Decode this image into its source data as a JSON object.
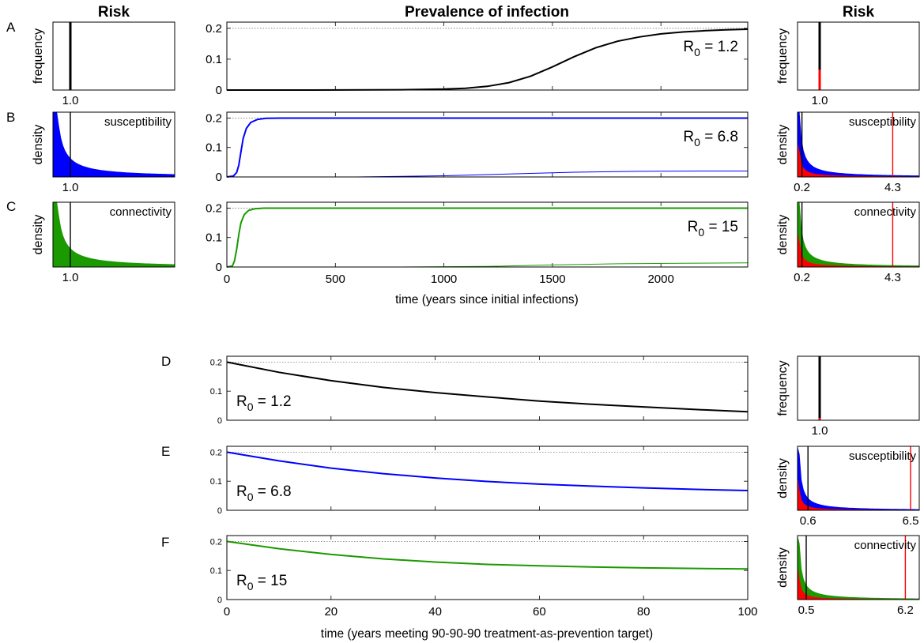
{
  "headers": {
    "risk_left": "Risk",
    "prevalence": "Prevalence of infection",
    "risk_right": "Risk"
  },
  "colors": {
    "black": "#000000",
    "blue": "#0000ff",
    "green": "#1a9a00",
    "red": "#ff0000"
  },
  "chart_data": [
    {
      "id": "A-left",
      "panel": "A",
      "type": "bar",
      "ylabel": "frequency",
      "xticks": [
        "1.0"
      ],
      "marker_lines": [
        1.0
      ],
      "distribution": "point mass at 1.0"
    },
    {
      "id": "A-mid",
      "panel": "A",
      "type": "line",
      "annotation": "R0 = 1.2",
      "r0_base": "R",
      "r0_sub": "0",
      "r0_rest": " = 1.2",
      "yticks": [
        "0",
        "0.1",
        "0.2"
      ],
      "ylim": [
        0,
        0.22
      ],
      "reference_line": 0.2,
      "series": [
        {
          "color": "black",
          "x": [
            0,
            400,
            800,
            1000,
            1100,
            1200,
            1300,
            1400,
            1500,
            1600,
            1700,
            1800,
            1900,
            2000,
            2100,
            2200,
            2300,
            2400
          ],
          "y": [
            0,
            0,
            0.001,
            0.003,
            0.006,
            0.012,
            0.024,
            0.045,
            0.075,
            0.108,
            0.137,
            0.158,
            0.172,
            0.182,
            0.188,
            0.192,
            0.195,
            0.197
          ]
        }
      ]
    },
    {
      "id": "A-right",
      "panel": "A",
      "type": "bar",
      "ylabel": "frequency",
      "xticks": [
        "1.0"
      ],
      "marker_lines": [
        1.0
      ]
    },
    {
      "id": "B-left",
      "panel": "B",
      "type": "bar",
      "ylabel": "density",
      "corner_label": "susceptibility",
      "xticks": [
        "1.0"
      ],
      "marker_lines": [
        1.0
      ],
      "distribution": "decaying, blue"
    },
    {
      "id": "B-mid",
      "panel": "B",
      "type": "line",
      "annotation": "R0 = 6.8",
      "r0_base": "R",
      "r0_sub": "0",
      "r0_rest": " = 6.8",
      "yticks": [
        "0",
        "0.1",
        "0.2"
      ],
      "ylim": [
        0,
        0.22
      ],
      "reference_line": 0.2,
      "series": [
        {
          "color": "blue",
          "x": [
            0,
            30,
            45,
            55,
            65,
            75,
            90,
            110,
            140,
            180,
            250,
            2400
          ],
          "y": [
            0,
            0.003,
            0.015,
            0.04,
            0.085,
            0.13,
            0.165,
            0.185,
            0.195,
            0.199,
            0.2,
            0.2
          ]
        },
        {
          "color": "blue",
          "thin": true,
          "x": [
            0,
            600,
            1000,
            1300,
            1600,
            1900,
            2200,
            2400
          ],
          "y": [
            0,
            0,
            0.004,
            0.01,
            0.016,
            0.019,
            0.02,
            0.02
          ]
        }
      ]
    },
    {
      "id": "B-right",
      "panel": "B",
      "type": "bar",
      "ylabel": "density",
      "corner_label": "susceptibility",
      "xticks": [
        "0.2",
        "4.3"
      ],
      "marker_lines": [
        0.2,
        4.3
      ]
    },
    {
      "id": "C-left",
      "panel": "C",
      "type": "bar",
      "ylabel": "density",
      "corner_label": "connectivity",
      "xticks": [
        "1.0"
      ],
      "marker_lines": [
        1.0
      ],
      "distribution": "decaying, green"
    },
    {
      "id": "C-mid",
      "panel": "C",
      "type": "line",
      "annotation": "R0 = 15",
      "r0_base": "R",
      "r0_sub": "0",
      "r0_rest": " = 15",
      "xlabel": "time (years since initial infections)",
      "xticks": [
        "0",
        "500",
        "1000",
        "1500",
        "2000"
      ],
      "xlim": [
        0,
        2400
      ],
      "yticks": [
        "0",
        "0.1",
        "0.2"
      ],
      "ylim": [
        0,
        0.22
      ],
      "reference_line": 0.2,
      "series": [
        {
          "color": "green",
          "x": [
            0,
            25,
            35,
            45,
            55,
            65,
            80,
            100,
            130,
            170,
            230,
            2400
          ],
          "y": [
            0,
            0.003,
            0.02,
            0.06,
            0.11,
            0.15,
            0.178,
            0.192,
            0.198,
            0.2,
            0.2,
            0.2
          ]
        },
        {
          "color": "green",
          "thin": true,
          "x": [
            0,
            800,
            1200,
            1500,
            1800,
            2100,
            2400
          ],
          "y": [
            0,
            0,
            0.002,
            0.007,
            0.011,
            0.013,
            0.014
          ]
        }
      ]
    },
    {
      "id": "C-right",
      "panel": "C",
      "type": "bar",
      "ylabel": "density",
      "corner_label": "connectivity",
      "xticks": [
        "0.2",
        "4.3"
      ],
      "marker_lines": [
        0.2,
        4.3
      ]
    },
    {
      "id": "D-mid",
      "panel": "D",
      "type": "line",
      "annotation": "R0 = 1.2",
      "r0_base": "R",
      "r0_sub": "0",
      "r0_rest": " = 1.2",
      "yticks": [
        "0",
        "0.1",
        "0.2"
      ],
      "ylim": [
        0,
        0.22
      ],
      "reference_line": 0.2,
      "series": [
        {
          "color": "black",
          "x": [
            0,
            10,
            20,
            30,
            40,
            50,
            60,
            70,
            80,
            90,
            100
          ],
          "y": [
            0.2,
            0.165,
            0.136,
            0.113,
            0.095,
            0.08,
            0.066,
            0.055,
            0.046,
            0.037,
            0.029
          ]
        }
      ]
    },
    {
      "id": "D-right",
      "panel": "D",
      "type": "bar",
      "ylabel": "frequency",
      "xticks": [
        "1.0"
      ],
      "marker_lines": [
        1.0
      ]
    },
    {
      "id": "E-mid",
      "panel": "E",
      "type": "line",
      "annotation": "R0 = 6.8",
      "r0_base": "R",
      "r0_sub": "0",
      "r0_rest": " = 6.8",
      "yticks": [
        "0",
        "0.1",
        "0.2"
      ],
      "ylim": [
        0,
        0.22
      ],
      "reference_line": 0.2,
      "series": [
        {
          "color": "blue",
          "x": [
            0,
            10,
            20,
            30,
            40,
            50,
            60,
            70,
            80,
            90,
            100
          ],
          "y": [
            0.2,
            0.17,
            0.145,
            0.126,
            0.111,
            0.099,
            0.09,
            0.083,
            0.077,
            0.072,
            0.068
          ]
        }
      ]
    },
    {
      "id": "E-right",
      "panel": "E",
      "type": "bar",
      "ylabel": "density",
      "corner_label": "susceptibility",
      "xticks": [
        "0.6",
        "6.5"
      ],
      "marker_lines": [
        0.6,
        6.5
      ]
    },
    {
      "id": "F-mid",
      "panel": "F",
      "type": "line",
      "annotation": "R0 = 15",
      "r0_base": "R",
      "r0_sub": "0",
      "r0_rest": " = 15",
      "xlabel": "time (years meeting 90-90-90 treatment-as-prevention target)",
      "xticks": [
        "0",
        "20",
        "40",
        "60",
        "80",
        "100"
      ],
      "xlim": [
        0,
        100
      ],
      "yticks": [
        "0",
        "0.1",
        "0.2"
      ],
      "ylim": [
        0,
        0.22
      ],
      "reference_line": 0.2,
      "series": [
        {
          "color": "green",
          "x": [
            0,
            10,
            20,
            30,
            40,
            50,
            60,
            70,
            80,
            90,
            100
          ],
          "y": [
            0.2,
            0.175,
            0.155,
            0.14,
            0.129,
            0.121,
            0.116,
            0.112,
            0.109,
            0.107,
            0.105
          ]
        }
      ]
    },
    {
      "id": "F-right",
      "panel": "F",
      "type": "bar",
      "ylabel": "density",
      "corner_label": "connectivity",
      "xticks": [
        "0.5",
        "6.2"
      ],
      "marker_lines": [
        0.5,
        6.2
      ]
    }
  ]
}
